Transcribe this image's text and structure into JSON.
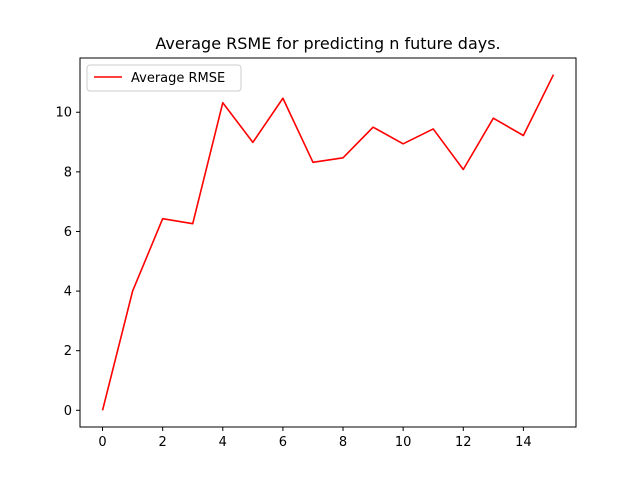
{
  "chart_data": {
    "type": "line",
    "title": "Average RSME for predicting n future days.",
    "xlabel": "",
    "ylabel": "",
    "x": [
      0,
      1,
      2,
      3,
      4,
      5,
      6,
      7,
      8,
      9,
      10,
      11,
      12,
      13,
      14,
      15
    ],
    "series": [
      {
        "name": "Average RMSE",
        "color": "#ff0000",
        "values": [
          0.0,
          4.0,
          6.43,
          6.26,
          10.32,
          8.99,
          10.47,
          8.32,
          8.47,
          9.5,
          8.94,
          9.44,
          8.08,
          9.8,
          9.22,
          11.26
        ]
      }
    ],
    "xlim": [
      -0.75,
      15.75
    ],
    "ylim": [
      -0.56,
      11.82
    ],
    "xticks": [
      0,
      2,
      4,
      6,
      8,
      10,
      12,
      14
    ],
    "yticks": [
      0,
      2,
      4,
      6,
      8,
      10
    ],
    "grid": false,
    "legend_position": "upper-left"
  }
}
